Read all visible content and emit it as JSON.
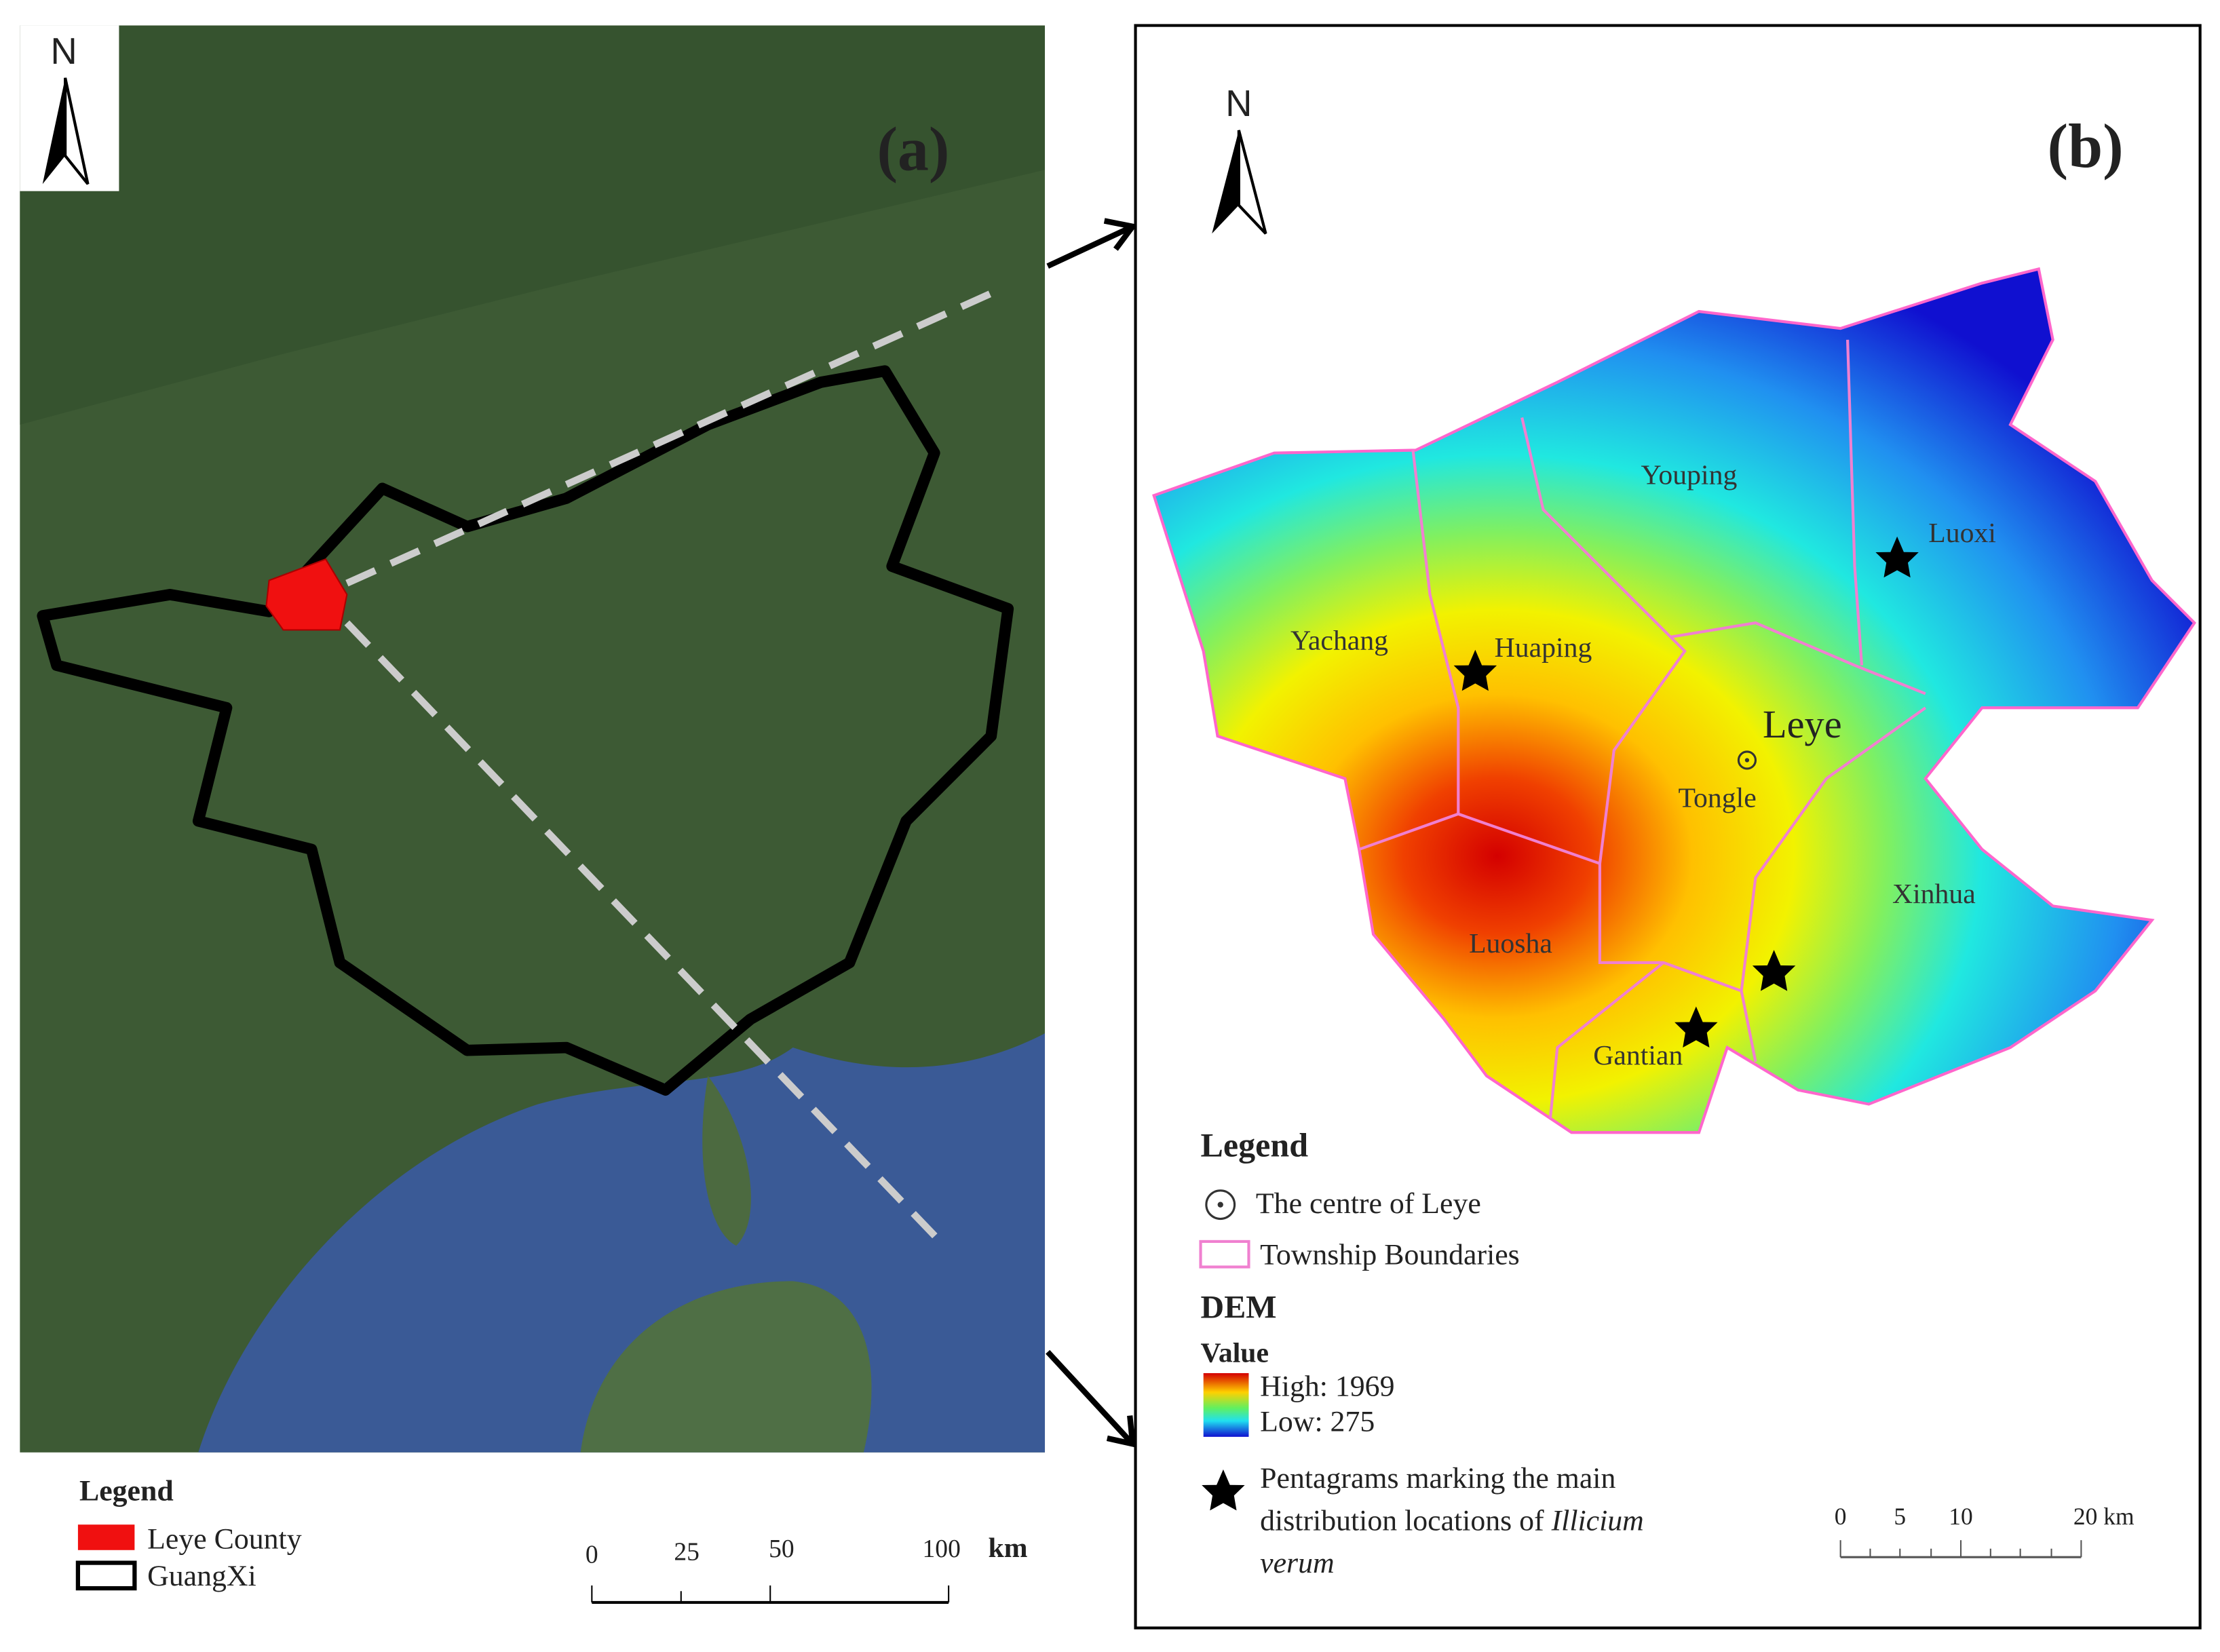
{
  "panel_a": {
    "label": "(a)",
    "north": "N",
    "legend": {
      "title": "Legend",
      "items": [
        "Leye County",
        "GuangXi"
      ]
    },
    "scale": {
      "ticks": [
        "0",
        "25",
        "50",
        "100"
      ],
      "unit": "km"
    }
  },
  "panel_b": {
    "label": "(b)",
    "north": "N",
    "places": [
      "Youping",
      "Luoxi",
      "Yachang",
      "Huaping",
      "Leye",
      "Tongle",
      "Xinhua",
      "Luosha",
      "Gantian"
    ],
    "legend": {
      "title": "Legend",
      "centre": "The centre of Leye",
      "boundaries": "Township Boundaries",
      "dem": "DEM",
      "value": "Value",
      "high": "High: 1969",
      "low": "Low: 275",
      "star_lines": [
        "Pentagrams marking the main",
        "distribution locations of"
      ],
      "species": [
        "Illicium",
        "verum"
      ]
    },
    "scale": {
      "ticks": [
        "0",
        "5",
        "10",
        "20 km"
      ]
    }
  }
}
